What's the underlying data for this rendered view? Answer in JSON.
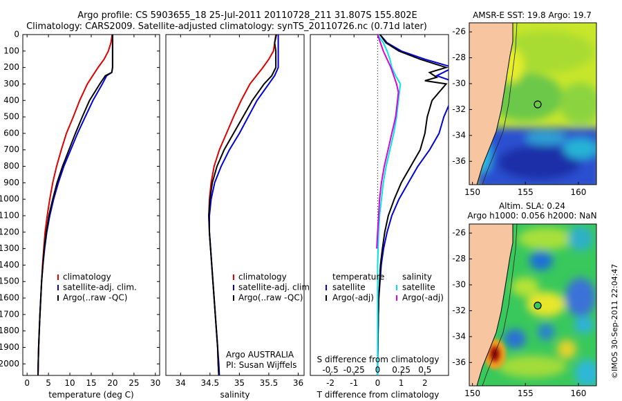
{
  "header": {
    "line1": "Argo profile: CS 5903655_18 25-Jul-2011 20110728_211 31.807S 155.802E",
    "line2": "Climatology: CARS2009. Satellite-adjusted climatology: synTS_20110726.nc (0.71d later)"
  },
  "colors": {
    "climatology": "#dd0000",
    "satellite": "#0000dd",
    "argo": "#000000",
    "cyan": "#00e5e5",
    "magenta": "#dd00dd",
    "land": "#f7c59f"
  },
  "chart_data": [
    {
      "type": "line",
      "id": "temperature",
      "xlabel": "temperature (deg C)",
      "xlim": [
        -1,
        31
      ],
      "xticks": [
        "0",
        "5",
        "10",
        "15",
        "20",
        "25",
        "30"
      ],
      "ylim": [
        0,
        2070
      ],
      "yticks": [
        "0",
        "100",
        "200",
        "300",
        "400",
        "500",
        "600",
        "700",
        "800",
        "900",
        "1000",
        "1100",
        "1200",
        "1300",
        "1400",
        "1500",
        "1600",
        "1700",
        "1800",
        "1900",
        "2000"
      ],
      "legend": [
        "climatology",
        "satellite-adj. clim.",
        "Argo(..raw -QC)"
      ],
      "series": [
        {
          "name": "climatology",
          "depth": [
            0,
            50,
            100,
            150,
            200,
            300,
            400,
            500,
            600,
            700,
            800,
            900,
            1000,
            1100,
            1200,
            1300,
            1400,
            1500,
            1600,
            1700,
            1800,
            1900,
            2000,
            2070
          ],
          "values": [
            19.9,
            19.6,
            19,
            18,
            16.6,
            14.1,
            12.3,
            10.8,
            9.2,
            8.0,
            6.9,
            6.0,
            5.3,
            4.7,
            4.2,
            3.9,
            3.6,
            3.4,
            3.2,
            3.0,
            2.85,
            2.7,
            2.6,
            2.55
          ]
        },
        {
          "name": "satellite-adj. clim.",
          "depth": [
            0,
            100,
            200,
            230,
            250,
            300,
            400,
            500,
            600,
            700,
            800,
            900,
            1000,
            1100,
            1200,
            1300,
            1400,
            1500,
            1600,
            1700,
            1800,
            1900,
            2000,
            2070
          ],
          "values": [
            20.0,
            20.0,
            20.0,
            19.8,
            18.6,
            17.6,
            15.4,
            13.6,
            11.8,
            10.2,
            8.6,
            7.3,
            6.2,
            5.3,
            4.6,
            4.1,
            3.7,
            3.4,
            3.2,
            3.0,
            2.85,
            2.7,
            2.6,
            2.55
          ]
        },
        {
          "name": "Argo(..raw -QC)",
          "depth": [
            0,
            100,
            200,
            230,
            250,
            300,
            400,
            500,
            600,
            700,
            800,
            900,
            1000,
            1100,
            1200,
            1300,
            1400,
            1500,
            1600,
            1700,
            1800,
            1900,
            2000,
            2070
          ],
          "values": [
            20.0,
            20.0,
            20.0,
            19.8,
            18.3,
            17.0,
            14.6,
            12.9,
            11.3,
            9.8,
            8.3,
            7.0,
            6.0,
            5.1,
            4.5,
            4.0,
            3.7,
            3.4,
            3.2,
            3.0,
            2.85,
            2.7,
            2.6,
            2.55
          ]
        }
      ]
    },
    {
      "type": "line",
      "id": "salinity",
      "xlabel": "salinity",
      "xlim": [
        33.75,
        36.1
      ],
      "xticks": [
        "34",
        "34.5",
        "35",
        "35.5",
        "36"
      ],
      "ylim": [
        0,
        2070
      ],
      "legend": [
        "climatology",
        "satellite-adj. clim.",
        "Argo(..raw -QC)"
      ],
      "annotation": [
        "Argo AUSTRALIA",
        "PI: Susan Wijffels"
      ],
      "series": [
        {
          "name": "climatology",
          "depth": [
            0,
            50,
            100,
            150,
            200,
            300,
            400,
            500,
            600,
            700,
            800,
            900,
            1000,
            1100,
            1200,
            1300,
            1400,
            1500,
            1600,
            1700,
            1800,
            1900,
            2000,
            2070
          ],
          "values": [
            35.62,
            35.6,
            35.58,
            35.5,
            35.4,
            35.18,
            35.03,
            34.9,
            34.78,
            34.66,
            34.57,
            34.52,
            34.49,
            34.48,
            34.49,
            34.51,
            34.53,
            34.55,
            34.57,
            34.59,
            34.61,
            34.63,
            34.64,
            34.65
          ]
        },
        {
          "name": "satellite-adj. clim.",
          "depth": [
            0,
            100,
            200,
            250,
            300,
            400,
            500,
            600,
            700,
            800,
            900,
            1000,
            1100,
            1200,
            1300,
            1400,
            1500,
            1600,
            1700,
            1800,
            1900,
            2000,
            2070
          ],
          "values": [
            35.66,
            35.66,
            35.66,
            35.6,
            35.5,
            35.3,
            35.15,
            35.0,
            34.83,
            34.69,
            34.58,
            34.52,
            34.49,
            34.49,
            34.51,
            34.53,
            34.55,
            34.57,
            34.59,
            34.61,
            34.63,
            34.65,
            34.66
          ]
        },
        {
          "name": "Argo(..raw -QC)",
          "depth": [
            0,
            50,
            100,
            200,
            250,
            300,
            400,
            500,
            600,
            700,
            800,
            900,
            1000,
            1100,
            1200,
            1300,
            1400,
            1500,
            1600,
            1700,
            1800,
            1900,
            2000,
            2070
          ],
          "values": [
            35.63,
            35.6,
            35.62,
            35.62,
            35.55,
            35.42,
            35.22,
            35.06,
            34.9,
            34.74,
            34.62,
            34.54,
            34.5,
            34.48,
            34.49,
            34.51,
            34.53,
            34.55,
            34.57,
            34.59,
            34.61,
            34.63,
            34.64,
            34.65
          ]
        }
      ]
    },
    {
      "type": "line",
      "id": "differences",
      "xlabel_bottom": "T difference from climatology",
      "xlabel_top": "S difference from climatology",
      "xlim_T": [
        -2.85,
        3.0
      ],
      "xticks_T": [
        "-2",
        "-1",
        "0",
        "1",
        "2"
      ],
      "xticks_S": [
        "-0.5",
        "-0.25",
        "0",
        "0.25",
        "0.5"
      ],
      "ylim": [
        0,
        2070
      ],
      "legend_temperature": {
        "title": "temperature",
        "items": [
          "satellite",
          "Argo(-adj)"
        ]
      },
      "legend_salinity": {
        "title": "salinity",
        "items": [
          "satellite",
          "Argo(-adj)"
        ]
      },
      "series": [
        {
          "name": "satellite",
          "group": "temperature",
          "depth": [
            0,
            50,
            100,
            150,
            200,
            250,
            300,
            400,
            500,
            600,
            700,
            800,
            900,
            1000,
            1100,
            1200,
            1300,
            1400,
            1500,
            1600,
            1700,
            1800,
            1900,
            2000,
            2070
          ],
          "values": [
            0.1,
            0.4,
            1.0,
            2.0,
            3.2,
            2.5,
            3.5,
            3.1,
            2.8,
            2.6,
            2.2,
            1.7,
            1.3,
            0.9,
            0.6,
            0.4,
            0.25,
            0.15,
            0.1,
            0.05,
            0.03,
            0.02,
            0.01,
            0.0,
            0.0
          ]
        },
        {
          "name": "Argo(-adj)",
          "group": "temperature",
          "depth": [
            0,
            50,
            100,
            150,
            200,
            230,
            260,
            280,
            300,
            400,
            500,
            600,
            700,
            800,
            900,
            1000,
            1100,
            1200,
            1300,
            1400,
            1500,
            1600,
            1700,
            1800,
            1900,
            2000,
            2070
          ],
          "values": [
            0.1,
            0.35,
            0.9,
            1.8,
            2.9,
            2.2,
            2.5,
            2.0,
            2.9,
            2.3,
            2.1,
            2.0,
            1.8,
            1.4,
            1.0,
            0.7,
            0.45,
            0.3,
            0.2,
            0.12,
            0.08,
            0.05,
            0.03,
            0.02,
            0.01,
            0.0,
            0.0
          ]
        },
        {
          "name": "satellite",
          "group": "salinity",
          "depth": [
            0,
            50,
            100,
            150,
            200,
            250,
            300,
            400,
            500,
            600,
            700,
            800,
            900,
            1000,
            1100,
            1200,
            1300,
            1400,
            1500,
            1600,
            1700,
            1800,
            1900,
            2000,
            2070
          ],
          "values": [
            0.0,
            0.06,
            0.1,
            0.13,
            0.15,
            0.19,
            0.24,
            0.22,
            0.2,
            0.17,
            0.13,
            0.09,
            0.06,
            0.04,
            0.02,
            0.01,
            0.005,
            0.0,
            0.0,
            0.0,
            0.0,
            0.0,
            0.0,
            0.0,
            0.0
          ]
        },
        {
          "name": "Argo(-adj)",
          "group": "salinity",
          "depth": [
            0,
            50,
            100,
            150,
            200,
            250,
            300,
            350,
            400,
            450,
            500,
            550,
            600,
            700,
            800,
            900,
            1000,
            1100,
            1200,
            1300
          ],
          "values": [
            0.0,
            0.03,
            0.06,
            0.1,
            0.14,
            0.17,
            0.2,
            0.22,
            0.21,
            0.2,
            0.19,
            0.17,
            0.15,
            0.11,
            0.07,
            0.04,
            0.02,
            0.01,
            0.0,
            -0.01
          ]
        }
      ]
    },
    {
      "type": "heatmap",
      "id": "sst-map",
      "title": "AMSR-E SST: 19.8 Argo: 19.7",
      "xticks": [
        "150",
        "155",
        "160"
      ],
      "yticks": [
        "-26",
        "-28",
        "-30",
        "-32",
        "-34",
        "-36"
      ]
    },
    {
      "type": "heatmap",
      "id": "sla-map",
      "title1": "Altim. SLA: 0.24",
      "title2": "Argo h1000: 0.056 h2000: NaN",
      "xticks": [
        "150",
        "155",
        "160"
      ],
      "yticks": [
        "-26",
        "-28",
        "-30",
        "-32",
        "-34",
        "-36"
      ]
    }
  ],
  "credit": "©IMOS 30-Sep-2011 22:04:47"
}
